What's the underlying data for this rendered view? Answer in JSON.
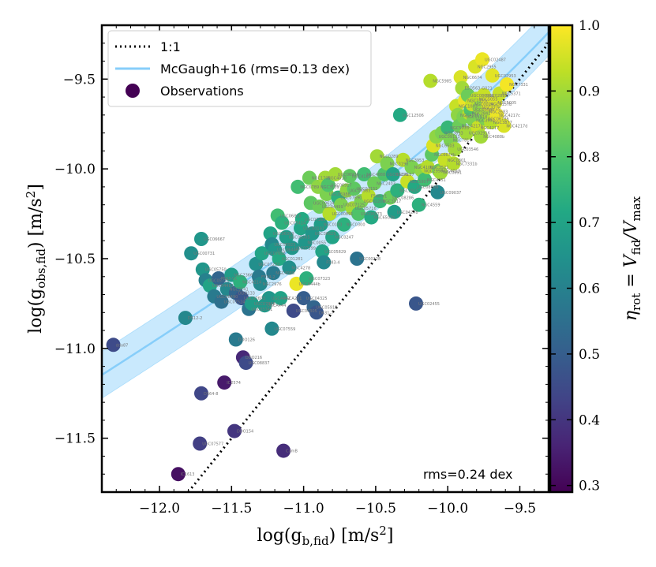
{
  "chart_data": {
    "type": "scatter",
    "xlabel": "log(g_b,fid) [m/s^2]",
    "ylabel": "log(g_obs,fid) [m/s^2]",
    "xlim": [
      -12.4,
      -9.3
    ],
    "ylim": [
      -11.8,
      -9.2
    ],
    "xticks": [
      -12.0,
      -11.5,
      -11.0,
      -10.5,
      -10.0,
      -9.5
    ],
    "yticks": [
      -11.5,
      -11.0,
      -10.5,
      -10.0,
      -9.5
    ],
    "xtick_labels": [
      "−12.0",
      "−11.5",
      "−11.0",
      "−10.5",
      "−10.0",
      "−9.5"
    ],
    "ytick_labels": [
      "−11.5",
      "−11.0",
      "−10.5",
      "−10.0",
      "−9.5"
    ],
    "colorbar": {
      "label": "η_rot = V_fid / V_max",
      "range": [
        0.29,
        1.0
      ],
      "ticks": [
        0.3,
        0.4,
        0.5,
        0.6,
        0.7,
        0.8,
        0.9,
        1.0
      ],
      "tick_labels": [
        "0.3",
        "0.4",
        "0.5",
        "0.6",
        "0.7",
        "0.8",
        "0.9",
        "1.0"
      ],
      "colormap": "viridis"
    },
    "legend": {
      "placement": "top-left",
      "entries": [
        "1:1",
        "McGaugh+16 (rms=0.13 dex)",
        "Observations"
      ]
    },
    "annotation": "rms=0.24 dex",
    "one_to_one": {
      "name": "1:1",
      "style": "dotted",
      "color": "#000000"
    },
    "mcgaugh": {
      "name": "McGaugh+16",
      "rms_dex": 0.13,
      "gdagger_log": -9.92,
      "color": "#87cefa"
    },
    "points": [
      {
        "x": -12.32,
        "y": -10.98,
        "eta": 0.45,
        "label": "ddo87"
      },
      {
        "x": -11.87,
        "y": -11.7,
        "eta": 0.32,
        "label": "IC1613"
      },
      {
        "x": -11.82,
        "y": -10.83,
        "eta": 0.62,
        "label": "D512-2"
      },
      {
        "x": -11.78,
        "y": -10.47,
        "eta": 0.64,
        "label": "UGC00731"
      },
      {
        "x": -11.71,
        "y": -10.39,
        "eta": 0.66,
        "label": "UGC06667"
      },
      {
        "x": -11.72,
        "y": -11.53,
        "eta": 0.42,
        "label": "UGC07577"
      },
      {
        "x": -11.71,
        "y": -11.25,
        "eta": 0.44,
        "label": "D564-8"
      },
      {
        "x": -11.7,
        "y": -10.56,
        "eta": 0.66,
        "label": "UGC05750"
      },
      {
        "x": -11.68,
        "y": -10.62,
        "eta": 0.6,
        "label": "UGC05721"
      },
      {
        "x": -11.65,
        "y": -10.65,
        "eta": 0.7,
        "label": "UGC04483"
      },
      {
        "x": -11.62,
        "y": -10.71,
        "eta": 0.58,
        "label": "UGC08490"
      },
      {
        "x": -11.59,
        "y": -10.61,
        "eta": 0.52,
        "label": "F563-V1"
      },
      {
        "x": -11.57,
        "y": -10.74,
        "eta": 0.55,
        "label": "UGC07524"
      },
      {
        "x": -11.55,
        "y": -11.19,
        "eta": 0.34,
        "label": "IC2574"
      },
      {
        "x": -11.53,
        "y": -10.67,
        "eta": 0.62,
        "label": "NGC3741"
      },
      {
        "x": -11.5,
        "y": -10.59,
        "eta": 0.68,
        "label": "NGC2366"
      },
      {
        "x": -11.47,
        "y": -10.69,
        "eta": 0.52,
        "label": "DDO133"
      },
      {
        "x": -11.48,
        "y": -11.46,
        "eta": 0.4,
        "label": "DDO154"
      },
      {
        "x": -11.47,
        "y": -10.95,
        "eta": 0.58,
        "label": "DDO126"
      },
      {
        "x": -11.44,
        "y": -10.63,
        "eta": 0.74,
        "label": "NGC4214"
      },
      {
        "x": -11.43,
        "y": -10.72,
        "eta": 0.48,
        "label": "UGC07603"
      },
      {
        "x": -11.42,
        "y": -11.05,
        "eta": 0.37,
        "label": "DDO216"
      },
      {
        "x": -11.4,
        "y": -11.08,
        "eta": 0.45,
        "label": "UGC08837"
      },
      {
        "x": -11.38,
        "y": -10.78,
        "eta": 0.56,
        "label": "UGC03741"
      },
      {
        "x": -11.36,
        "y": -10.75,
        "eta": 0.68,
        "label": "UGC07866"
      },
      {
        "x": -11.33,
        "y": -10.53,
        "eta": 0.64,
        "label": "UGC07232"
      },
      {
        "x": -11.31,
        "y": -10.6,
        "eta": 0.58,
        "label": "F574-2"
      },
      {
        "x": -11.3,
        "y": -10.64,
        "eta": 0.62,
        "label": "NGC2976"
      },
      {
        "x": -11.29,
        "y": -10.47,
        "eta": 0.7,
        "label": "UGC07608"
      },
      {
        "x": -11.27,
        "y": -10.76,
        "eta": 0.67,
        "label": "UGCA444"
      },
      {
        "x": -11.24,
        "y": -10.72,
        "eta": 0.66,
        "label": "UGCA442"
      },
      {
        "x": -11.23,
        "y": -10.36,
        "eta": 0.7,
        "label": "UGC06399"
      },
      {
        "x": -11.22,
        "y": -10.42,
        "eta": 0.62,
        "label": "UGC06923"
      },
      {
        "x": -11.21,
        "y": -10.58,
        "eta": 0.58,
        "label": "NGC4068"
      },
      {
        "x": -11.22,
        "y": -10.89,
        "eta": 0.62,
        "label": "UGC07559"
      },
      {
        "x": -11.2,
        "y": -10.45,
        "eta": 0.66,
        "label": "UGC06446"
      },
      {
        "x": -11.18,
        "y": -10.26,
        "eta": 0.78,
        "label": "UGC06818"
      },
      {
        "x": -11.17,
        "y": -10.5,
        "eta": 0.72,
        "label": "UGC01281"
      },
      {
        "x": -11.16,
        "y": -10.72,
        "eta": 0.7,
        "label": "UGCA281"
      },
      {
        "x": -11.15,
        "y": -10.3,
        "eta": 0.74,
        "label": "UGC05414"
      },
      {
        "x": -11.14,
        "y": -11.57,
        "eta": 0.38,
        "label": "CamB"
      },
      {
        "x": -11.12,
        "y": -10.38,
        "eta": 0.68,
        "label": "UGC05005"
      },
      {
        "x": -11.1,
        "y": -10.55,
        "eta": 0.64,
        "label": "NGC4278"
      },
      {
        "x": -11.08,
        "y": -10.44,
        "eta": 0.66,
        "label": "UGC07399"
      },
      {
        "x": -11.07,
        "y": -10.79,
        "eta": 0.45,
        "label": "UGC04305"
      },
      {
        "x": -11.05,
        "y": -10.64,
        "eta": 0.98,
        "label": "UGCA444b"
      },
      {
        "x": -11.04,
        "y": -10.1,
        "eta": 0.78,
        "label": "NGC6789"
      },
      {
        "x": -11.02,
        "y": -10.33,
        "eta": 0.7,
        "label": "UGC00191"
      },
      {
        "x": -11.01,
        "y": -10.28,
        "eta": 0.72,
        "label": "UGC07261"
      },
      {
        "x": -11.0,
        "y": -10.72,
        "eta": 0.5,
        "label": "UGC04325"
      },
      {
        "x": -10.99,
        "y": -10.41,
        "eta": 0.66,
        "label": "NGC0055"
      },
      {
        "x": -10.98,
        "y": -10.61,
        "eta": 0.74,
        "label": "UGC07323"
      },
      {
        "x": -10.96,
        "y": -10.05,
        "eta": 0.84,
        "label": "NGC1705"
      },
      {
        "x": -10.95,
        "y": -10.19,
        "eta": 0.82,
        "label": "UGC00634"
      },
      {
        "x": -10.94,
        "y": -10.36,
        "eta": 0.66,
        "label": "UGC06628"
      },
      {
        "x": -10.93,
        "y": -10.77,
        "eta": 0.52,
        "label": "UGC05918"
      },
      {
        "x": -10.91,
        "y": -10.8,
        "eta": 0.48,
        "label": "D631-7"
      },
      {
        "x": -10.9,
        "y": -10.1,
        "eta": 0.88,
        "label": "NGC3109"
      },
      {
        "x": -10.89,
        "y": -10.21,
        "eta": 0.84,
        "label": "UGC04499"
      },
      {
        "x": -10.88,
        "y": -10.31,
        "eta": 0.68,
        "label": "NGC0100"
      },
      {
        "x": -10.87,
        "y": -10.46,
        "eta": 0.7,
        "label": "UGC05829"
      },
      {
        "x": -10.86,
        "y": -10.52,
        "eta": 0.62,
        "label": "F583-4"
      },
      {
        "x": -10.85,
        "y": -10.05,
        "eta": 0.9,
        "label": "NGC4010"
      },
      {
        "x": -10.84,
        "y": -10.14,
        "eta": 0.86,
        "label": "UGC05986"
      },
      {
        "x": -10.83,
        "y": -10.09,
        "eta": 0.8,
        "label": "UGC06917"
      },
      {
        "x": -10.82,
        "y": -10.25,
        "eta": 0.92,
        "label": "UGC00891"
      },
      {
        "x": -10.8,
        "y": -10.38,
        "eta": 0.7,
        "label": "NGC0247"
      },
      {
        "x": -10.78,
        "y": -10.03,
        "eta": 0.9,
        "label": "UGC06930"
      },
      {
        "x": -10.76,
        "y": -10.16,
        "eta": 0.74,
        "label": "UGC07690"
      },
      {
        "x": -10.74,
        "y": -10.2,
        "eta": 0.86,
        "label": "UGC07125"
      },
      {
        "x": -10.72,
        "y": -10.31,
        "eta": 0.74,
        "label": "NGC0300"
      },
      {
        "x": -10.7,
        "y": -10.12,
        "eta": 0.88,
        "label": "UGC06983"
      },
      {
        "x": -10.68,
        "y": -10.04,
        "eta": 0.82,
        "label": "NGC4183"
      },
      {
        "x": -10.66,
        "y": -10.22,
        "eta": 0.9,
        "label": "UGC05716"
      },
      {
        "x": -10.65,
        "y": -10.11,
        "eta": 0.82,
        "label": "UGC07151"
      },
      {
        "x": -10.63,
        "y": -10.5,
        "eta": 0.56,
        "label": "UGC00128"
      },
      {
        "x": -10.62,
        "y": -10.25,
        "eta": 0.8,
        "label": "UGC06973"
      },
      {
        "x": -10.6,
        "y": -10.18,
        "eta": 0.86,
        "label": "UGC02259"
      },
      {
        "x": -10.58,
        "y": -10.03,
        "eta": 0.78,
        "label": "NGC4088"
      },
      {
        "x": -10.55,
        "y": -10.15,
        "eta": 0.92,
        "label": "F568-V1"
      },
      {
        "x": -10.53,
        "y": -10.27,
        "eta": 0.72,
        "label": "NGC6503b"
      },
      {
        "x": -10.51,
        "y": -10.08,
        "eta": 0.84,
        "label": "NGC2403"
      },
      {
        "x": -10.49,
        "y": -9.93,
        "eta": 0.9,
        "label": "NGC0289"
      },
      {
        "x": -10.47,
        "y": -10.18,
        "eta": 0.76,
        "label": "NGC3917"
      },
      {
        "x": -10.44,
        "y": -10.03,
        "eta": 0.8,
        "label": "UGC03205"
      },
      {
        "x": -10.42,
        "y": -9.97,
        "eta": 0.86,
        "label": "NGC3198"
      },
      {
        "x": -10.4,
        "y": -10.16,
        "eta": 0.84,
        "label": "UGC08286"
      },
      {
        "x": -10.38,
        "y": -10.03,
        "eta": 0.7,
        "label": "NGC4157"
      },
      {
        "x": -10.37,
        "y": -10.24,
        "eta": 0.68,
        "label": "UGC04278"
      },
      {
        "x": -10.35,
        "y": -10.12,
        "eta": 0.74,
        "label": "NGC2915"
      },
      {
        "x": -10.33,
        "y": -9.7,
        "eta": 0.72,
        "label": "UGC12506"
      },
      {
        "x": -10.31,
        "y": -9.95,
        "eta": 0.92,
        "label": "NGC3953"
      },
      {
        "x": -10.28,
        "y": -10.07,
        "eta": 0.94,
        "label": "NGC5907"
      },
      {
        "x": -10.25,
        "y": -9.99,
        "eta": 0.86,
        "label": "NGC4100"
      },
      {
        "x": -10.23,
        "y": -10.1,
        "eta": 0.72,
        "label": "UGC08699"
      },
      {
        "x": -10.22,
        "y": -10.75,
        "eta": 0.48,
        "label": "UGC02455"
      },
      {
        "x": -10.2,
        "y": -10.2,
        "eta": 0.74,
        "label": "NGC4559"
      },
      {
        "x": -10.18,
        "y": -10.01,
        "eta": 0.88,
        "label": "NGC2998"
      },
      {
        "x": -10.16,
        "y": -10.06,
        "eta": 0.78,
        "label": "NGC4051"
      },
      {
        "x": -10.14,
        "y": -9.99,
        "eta": 0.92,
        "label": "NGC3521"
      },
      {
        "x": -10.12,
        "y": -9.51,
        "eta": 0.92,
        "label": "NGC5985"
      },
      {
        "x": -10.11,
        "y": -9.92,
        "eta": 0.82,
        "label": "NGC6674b"
      },
      {
        "x": -10.1,
        "y": -9.87,
        "eta": 0.96,
        "label": "NGC6503"
      },
      {
        "x": -10.08,
        "y": -9.82,
        "eta": 0.88,
        "label": "UGC09133"
      },
      {
        "x": -10.07,
        "y": -10.13,
        "eta": 0.62,
        "label": "UGC09037"
      },
      {
        "x": -10.06,
        "y": -10.01,
        "eta": 0.84,
        "label": "NGC4013"
      },
      {
        "x": -10.05,
        "y": -10.02,
        "eta": 0.9,
        "label": "NGC0891"
      },
      {
        "x": -10.04,
        "y": -9.8,
        "eta": 0.86,
        "label": "NGC3893"
      },
      {
        "x": -10.02,
        "y": -9.95,
        "eta": 0.94,
        "label": "NGC0801"
      },
      {
        "x": -10.0,
        "y": -9.77,
        "eta": 0.76,
        "label": "NGC5033"
      },
      {
        "x": -9.98,
        "y": -9.84,
        "eta": 0.86,
        "label": "NGC7814"
      },
      {
        "x": -9.96,
        "y": -9.97,
        "eta": 0.92,
        "label": "NGC7331b"
      },
      {
        "x": -9.95,
        "y": -9.89,
        "eta": 0.9,
        "label": "UGC03546"
      },
      {
        "x": -9.94,
        "y": -9.65,
        "eta": 0.94,
        "label": "NGC1003"
      },
      {
        "x": -9.93,
        "y": -9.7,
        "eta": 0.88,
        "label": "NGC4138"
      },
      {
        "x": -9.92,
        "y": -9.76,
        "eta": 0.84,
        "label": "NGC4217b"
      },
      {
        "x": -9.91,
        "y": -9.49,
        "eta": 0.96,
        "label": "NGC6674"
      },
      {
        "x": -9.9,
        "y": -9.55,
        "eta": 0.9,
        "label": "ESO563-G021"
      },
      {
        "x": -9.89,
        "y": -9.71,
        "eta": 0.86,
        "label": "UGC11914"
      },
      {
        "x": -9.88,
        "y": -9.62,
        "eta": 0.98,
        "label": "NGC7331c"
      },
      {
        "x": -9.87,
        "y": -9.8,
        "eta": 0.9,
        "label": "UGC02916"
      },
      {
        "x": -9.86,
        "y": -9.59,
        "eta": 0.84,
        "label": "UGC08699b"
      },
      {
        "x": -9.85,
        "y": -9.69,
        "eta": 0.92,
        "label": "NGC2841"
      },
      {
        "x": -9.84,
        "y": -9.67,
        "eta": 0.8,
        "label": "UGC03580"
      },
      {
        "x": -9.83,
        "y": -9.64,
        "eta": 0.94,
        "label": "NGC0024"
      },
      {
        "x": -9.82,
        "y": -9.73,
        "eta": 0.86,
        "label": "NGC3992"
      },
      {
        "x": -9.81,
        "y": -9.43,
        "eta": 0.96,
        "label": "NGC2955"
      },
      {
        "x": -9.8,
        "y": -9.61,
        "eta": 0.92,
        "label": "NGC5055"
      },
      {
        "x": -9.79,
        "y": -9.77,
        "eta": 0.94,
        "label": "NGC4217"
      },
      {
        "x": -9.78,
        "y": -9.66,
        "eta": 0.88,
        "label": "NGC3726"
      },
      {
        "x": -9.77,
        "y": -9.82,
        "eta": 0.9,
        "label": "NGC4088b"
      },
      {
        "x": -9.76,
        "y": -9.39,
        "eta": 0.98,
        "label": "UGC02487"
      },
      {
        "x": -9.75,
        "y": -9.59,
        "eta": 0.94,
        "label": "UGC02885"
      },
      {
        "x": -9.74,
        "y": -9.72,
        "eta": 0.86,
        "label": "UGC06786"
      },
      {
        "x": -9.73,
        "y": -9.68,
        "eta": 0.9,
        "label": "NGC2683"
      },
      {
        "x": -9.72,
        "y": -9.64,
        "eta": 0.96,
        "label": "NGC4157b"
      },
      {
        "x": -9.7,
        "y": -9.74,
        "eta": 0.92,
        "label": "NGC3877"
      },
      {
        "x": -9.69,
        "y": -9.48,
        "eta": 0.97,
        "label": "UGC02953"
      },
      {
        "x": -9.67,
        "y": -9.63,
        "eta": 0.96,
        "label": "NGC5005"
      },
      {
        "x": -9.66,
        "y": -9.7,
        "eta": 0.98,
        "label": "NGC4217c"
      },
      {
        "x": -9.64,
        "y": -9.58,
        "eta": 0.94,
        "label": "NGC5371"
      },
      {
        "x": -9.61,
        "y": -9.76,
        "eta": 0.96,
        "label": "NGC4217d"
      },
      {
        "x": -9.59,
        "y": -9.53,
        "eta": 0.99,
        "label": "NGC7331"
      }
    ]
  }
}
